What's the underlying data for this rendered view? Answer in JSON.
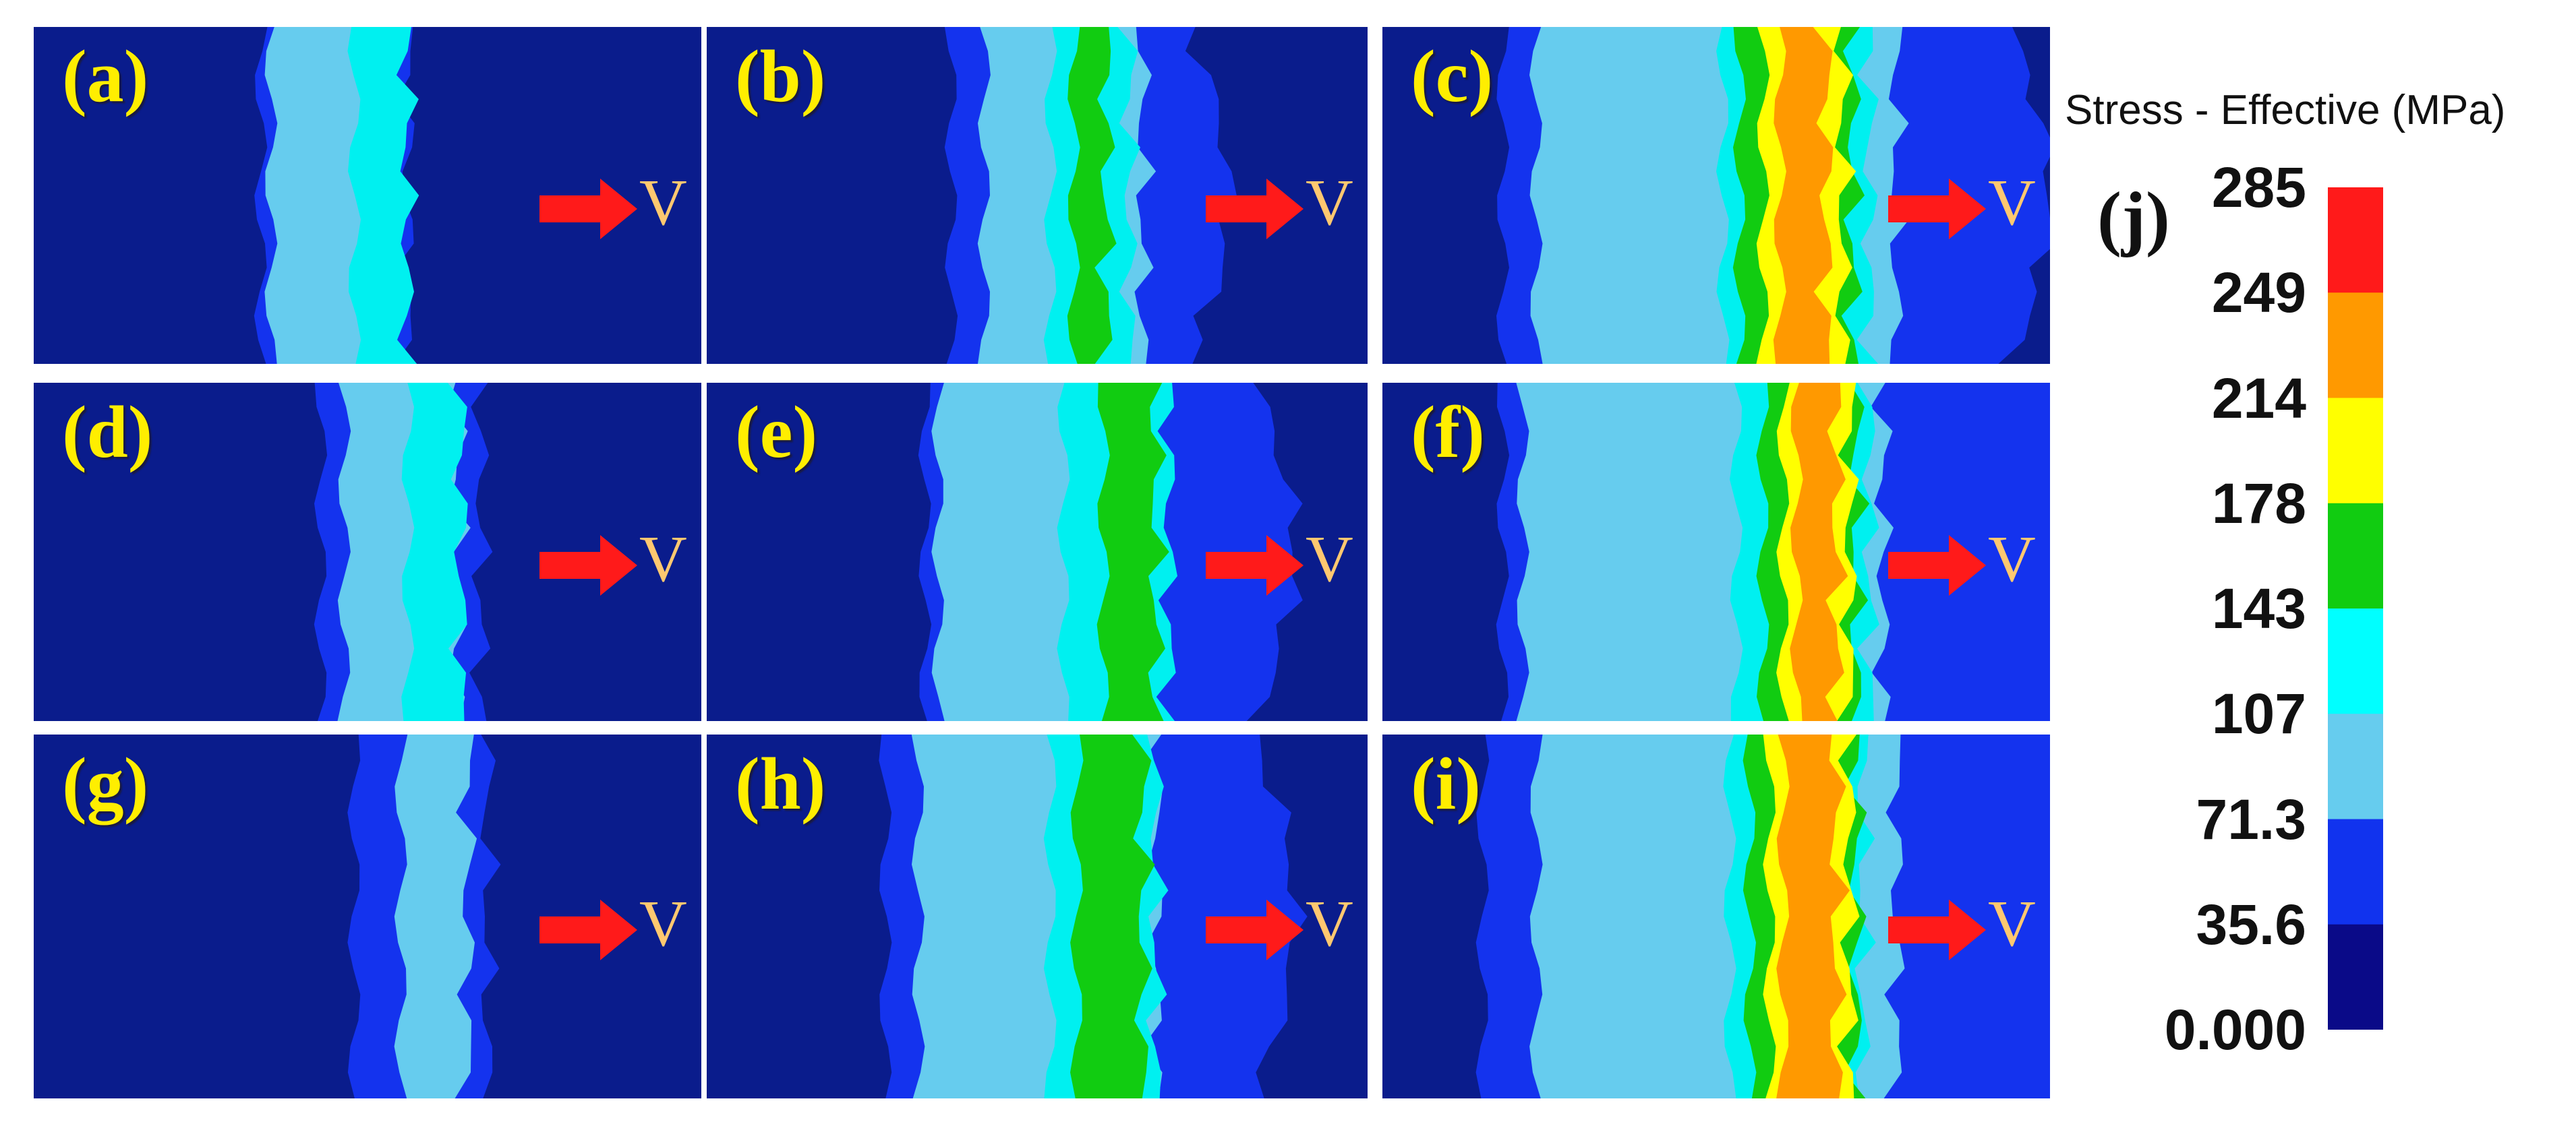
{
  "panels": [
    {
      "label": "(a)",
      "arrow_label": "V"
    },
    {
      "label": "(b)",
      "arrow_label": "V"
    },
    {
      "label": "(c)",
      "arrow_label": "V"
    },
    {
      "label": "(d)",
      "arrow_label": "V"
    },
    {
      "label": "(e)",
      "arrow_label": "V"
    },
    {
      "label": "(f)",
      "arrow_label": "V"
    },
    {
      "label": "(g)",
      "arrow_label": "V"
    },
    {
      "label": "(h)",
      "arrow_label": "V"
    },
    {
      "label": "(i)",
      "arrow_label": "V"
    }
  ],
  "legend": {
    "label": "(j)",
    "title": "Stress - Effective (MPa)",
    "ticks": [
      "285",
      "249",
      "214",
      "178",
      "143",
      "107",
      "71.3",
      "35.6",
      "0.000"
    ],
    "colors_top_to_bottom": [
      "#ff1a1a",
      "#ff9900",
      "#ffff00",
      "#11cc11",
      "#00ffff",
      "#66ccee",
      "#1133ee",
      "#0a0a88"
    ]
  },
  "colors": {
    "background_field": "#0a1c8c",
    "arrow": "#ff1a1a",
    "panel_label": "#ffee00",
    "arrow_label": "#ffc870"
  }
}
